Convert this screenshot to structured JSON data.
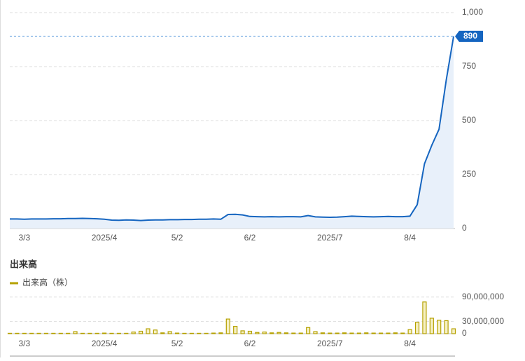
{
  "chart_data": [
    {
      "type": "line",
      "categories": [
        null,
        null,
        "3/3",
        null,
        null,
        null,
        null,
        null,
        null,
        null,
        null,
        null,
        null,
        "2025/4",
        null,
        null,
        null,
        null,
        null,
        null,
        null,
        null,
        null,
        "5/2",
        null,
        null,
        null,
        null,
        null,
        null,
        null,
        null,
        null,
        "6/2",
        null,
        null,
        null,
        null,
        null,
        null,
        null,
        null,
        null,
        null,
        "2025/7",
        null,
        null,
        null,
        null,
        null,
        null,
        null,
        null,
        null,
        null,
        "8/4",
        null,
        null,
        null,
        null,
        null,
        null
      ],
      "values": [
        44,
        44,
        43,
        44,
        44,
        44,
        45,
        45,
        46,
        46,
        47,
        46,
        45,
        43,
        39,
        38,
        40,
        39,
        37,
        39,
        40,
        40,
        41,
        41,
        42,
        42,
        43,
        43,
        44,
        43,
        65,
        66,
        63,
        56,
        55,
        54,
        55,
        54,
        55,
        55,
        54,
        60,
        54,
        53,
        52,
        53,
        55,
        57,
        56,
        55,
        54,
        55,
        56,
        55,
        55,
        57,
        110,
        300,
        385,
        460,
        690,
        890
      ],
      "color": "#1565c0",
      "ylim": [
        0,
        1000
      ],
      "yticks": [
        0,
        250,
        500,
        750,
        {
          "value": 1000,
          "label": "1,000"
        }
      ],
      "grid": true
    },
    {
      "type": "bar",
      "title": "出来高",
      "categories": [
        null,
        null,
        "3/3",
        null,
        null,
        null,
        null,
        null,
        null,
        null,
        null,
        null,
        null,
        "2025/4",
        null,
        null,
        null,
        null,
        null,
        null,
        null,
        null,
        null,
        "5/2",
        null,
        null,
        null,
        null,
        null,
        null,
        null,
        null,
        null,
        "6/2",
        null,
        null,
        null,
        null,
        null,
        null,
        null,
        null,
        null,
        null,
        "2025/7",
        null,
        null,
        null,
        null,
        null,
        null,
        null,
        null,
        null,
        null,
        "8/4",
        null,
        null,
        null,
        null,
        null,
        null
      ],
      "series": [
        {
          "name": "出来高（株）",
          "color": "#b5a100",
          "values": [
            1000000,
            1000000,
            1000000,
            1000000,
            1000000,
            1000000,
            1000000,
            1000000,
            1000000,
            5000000,
            1000000,
            1000000,
            1000000,
            1500000,
            1000000,
            1000000,
            1000000,
            4000000,
            6000000,
            12000000,
            9000000,
            2000000,
            5000000,
            1500000,
            1000000,
            1000000,
            1000000,
            1000000,
            1500000,
            2000000,
            36000000,
            18000000,
            7000000,
            6000000,
            3000000,
            4000000,
            2000000,
            3000000,
            2000000,
            1500000,
            1500000,
            15000000,
            5000000,
            2000000,
            1500000,
            1500000,
            2000000,
            1500000,
            1500000,
            2000000,
            1500000,
            1500000,
            1500000,
            2000000,
            1500000,
            10000000,
            28000000,
            78000000,
            38000000,
            33000000,
            32000000,
            12000000
          ]
        }
      ],
      "ylim": [
        0,
        100000000
      ],
      "yticks": [
        0,
        {
          "value": 30000000,
          "label": "30,000,000"
        },
        {
          "value": 90000000,
          "label": "90,000,000"
        }
      ],
      "grid": true
    }
  ]
}
